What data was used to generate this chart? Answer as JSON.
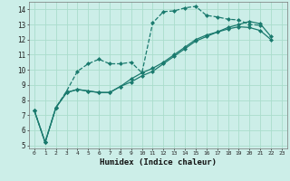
{
  "title": "",
  "xlabel": "Humidex (Indice chaleur)",
  "ylabel": "",
  "bg_color": "#cceee8",
  "grid_color": "#aaddcc",
  "line_color": "#1a7a6e",
  "xlim": [
    -0.5,
    23.5
  ],
  "ylim": [
    4.8,
    14.5
  ],
  "yticks": [
    5,
    6,
    7,
    8,
    9,
    10,
    11,
    12,
    13,
    14
  ],
  "xticks": [
    0,
    1,
    2,
    3,
    4,
    5,
    6,
    7,
    8,
    9,
    10,
    11,
    12,
    13,
    14,
    15,
    16,
    17,
    18,
    19,
    20,
    21,
    22,
    23
  ],
  "series1_x": [
    0,
    1,
    2,
    3,
    4,
    5,
    6,
    7,
    8,
    9,
    10,
    11,
    12,
    13,
    14,
    15,
    16,
    17,
    18,
    19,
    20,
    21
  ],
  "series1_y": [
    7.3,
    5.2,
    7.5,
    8.6,
    9.9,
    10.4,
    10.7,
    10.4,
    10.4,
    10.5,
    9.8,
    13.1,
    13.85,
    13.9,
    14.1,
    14.2,
    13.6,
    13.5,
    13.35,
    13.3,
    13.0,
    12.95
  ],
  "series2_x": [
    0,
    1,
    2,
    3,
    4,
    5,
    6,
    7,
    8,
    9,
    10,
    11,
    12,
    13,
    14,
    15,
    16,
    17,
    18,
    19,
    20,
    21,
    22
  ],
  "series2_y": [
    7.3,
    5.2,
    7.5,
    8.5,
    8.7,
    8.6,
    8.5,
    8.5,
    8.9,
    9.4,
    9.8,
    10.1,
    10.5,
    11.0,
    11.5,
    12.0,
    12.3,
    12.5,
    12.8,
    13.0,
    13.2,
    13.05,
    12.2
  ],
  "series3_x": [
    0,
    1,
    2,
    3,
    4,
    5,
    6,
    7,
    8,
    9,
    10,
    11,
    12,
    13,
    14,
    15,
    16,
    17,
    18,
    19,
    20,
    21,
    22
  ],
  "series3_y": [
    7.3,
    5.2,
    7.5,
    8.5,
    8.7,
    8.6,
    8.5,
    8.5,
    8.9,
    9.2,
    9.6,
    9.9,
    10.4,
    10.9,
    11.4,
    11.9,
    12.2,
    12.5,
    12.7,
    12.85,
    12.8,
    12.6,
    12.0
  ]
}
